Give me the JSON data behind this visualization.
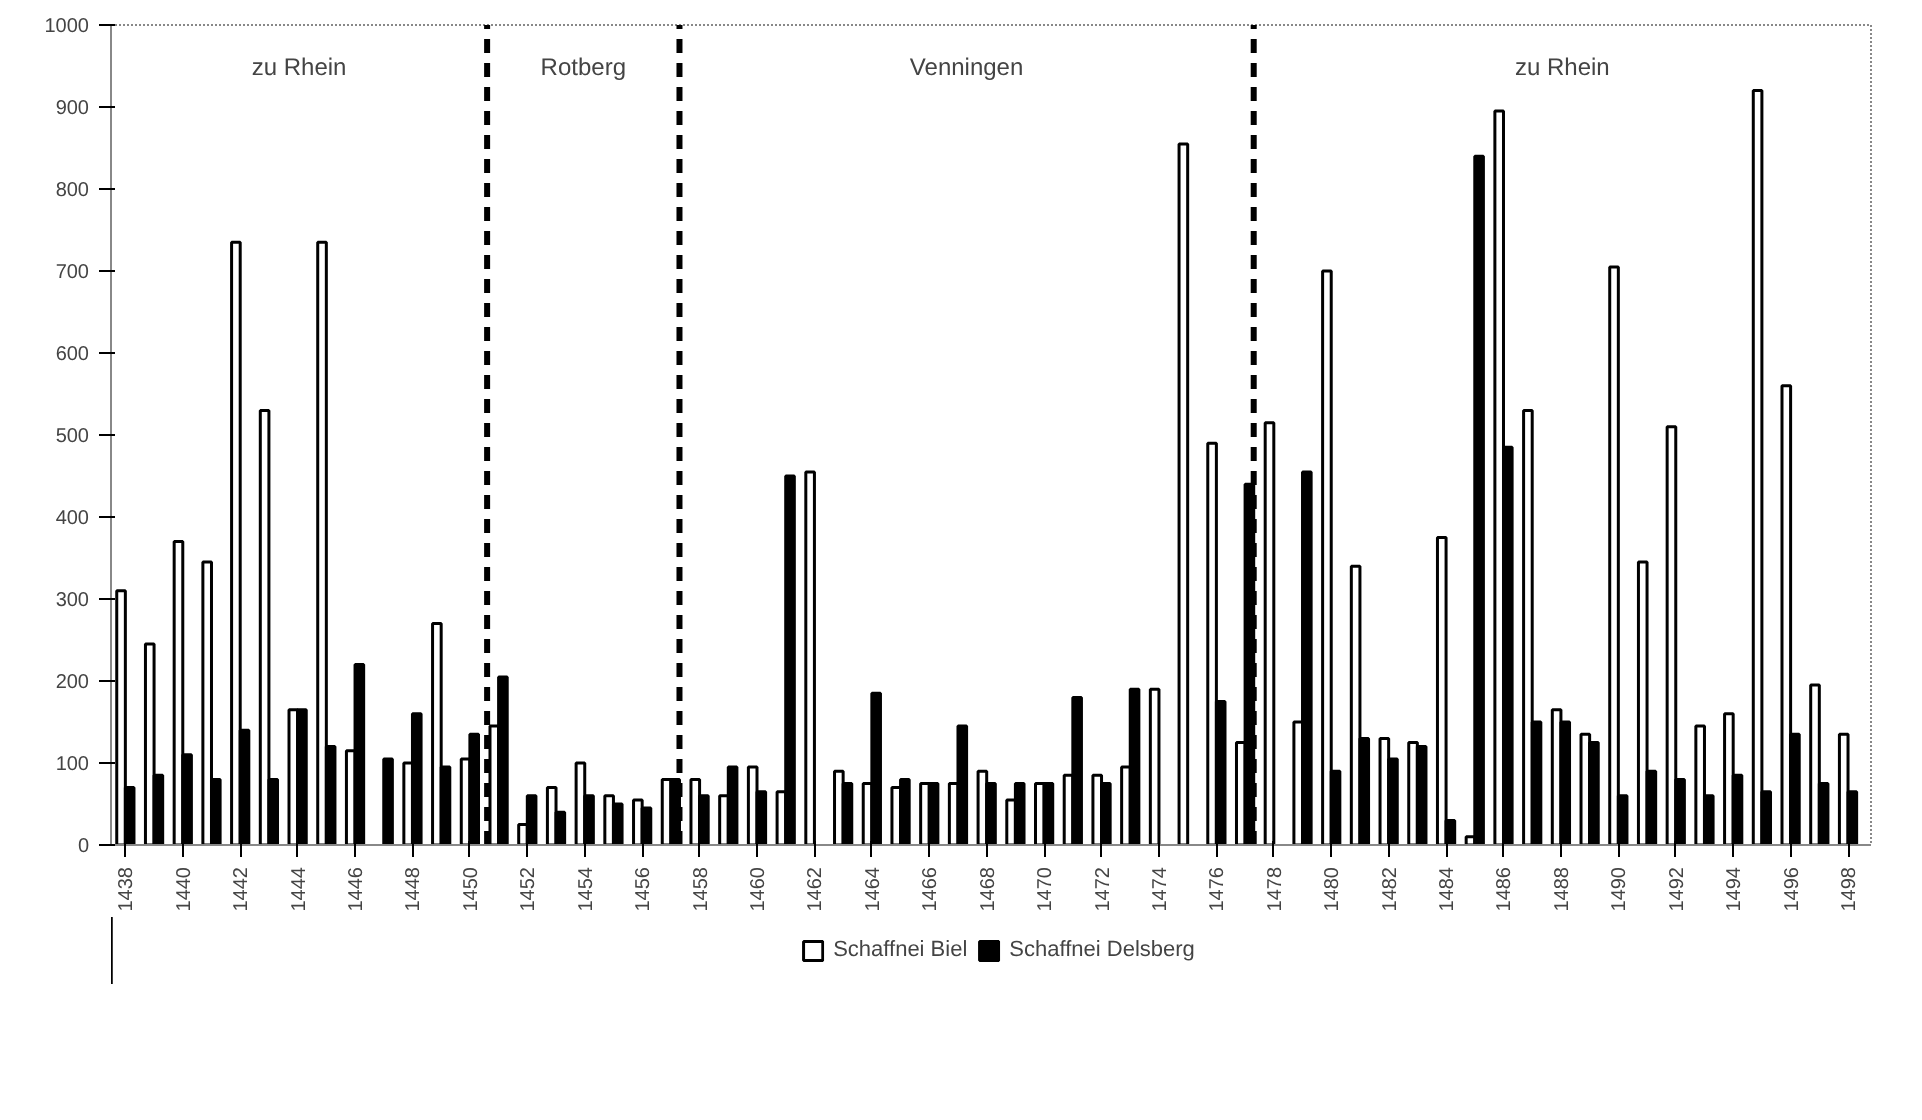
{
  "chart_data": {
    "type": "bar",
    "x": [
      1438,
      1439,
      1440,
      1441,
      1442,
      1443,
      1444,
      1445,
      1446,
      1447,
      1448,
      1449,
      1450,
      1451,
      1452,
      1453,
      1454,
      1455,
      1456,
      1457,
      1458,
      1459,
      1460,
      1461,
      1462,
      1463,
      1464,
      1465,
      1466,
      1467,
      1468,
      1469,
      1470,
      1471,
      1472,
      1473,
      1474,
      1475,
      1476,
      1477,
      1478,
      1479,
      1480,
      1481,
      1482,
      1483,
      1484,
      1485,
      1486,
      1487,
      1488,
      1489,
      1490,
      1491,
      1492,
      1493,
      1494,
      1495,
      1496,
      1497,
      1498
    ],
    "series": [
      {
        "name": "Schaffnei Biel",
        "color": "#ffffff",
        "values": [
          310,
          245,
          370,
          345,
          735,
          530,
          165,
          735,
          115,
          null,
          100,
          270,
          105,
          145,
          25,
          70,
          100,
          60,
          55,
          80,
          80,
          60,
          95,
          65,
          455,
          90,
          75,
          70,
          75,
          75,
          90,
          55,
          75,
          85,
          85,
          95,
          190,
          855,
          490,
          125,
          515,
          150,
          700,
          340,
          130,
          125,
          375,
          10,
          895,
          530,
          165,
          135,
          705,
          345,
          510,
          145,
          160,
          920,
          560,
          195,
          135
        ]
      },
      {
        "name": "Schaffnei Delsberg",
        "color": "#000000",
        "values": [
          70,
          85,
          110,
          80,
          140,
          80,
          165,
          120,
          220,
          105,
          160,
          95,
          135,
          205,
          60,
          40,
          60,
          50,
          45,
          80,
          60,
          95,
          65,
          450,
          null,
          75,
          185,
          80,
          75,
          145,
          75,
          75,
          75,
          180,
          75,
          190,
          null,
          null,
          175,
          440,
          null,
          455,
          90,
          130,
          105,
          120,
          30,
          840,
          485,
          150,
          150,
          125,
          60,
          90,
          80,
          60,
          85,
          65,
          135,
          75,
          65
        ]
      }
    ],
    "xlim": [
      1437.5,
      1498.8
    ],
    "xticks": [
      1438,
      1440,
      1442,
      1444,
      1446,
      1448,
      1450,
      1452,
      1454,
      1456,
      1458,
      1460,
      1462,
      1464,
      1466,
      1468,
      1470,
      1472,
      1474,
      1476,
      1478,
      1480,
      1482,
      1484,
      1486,
      1488,
      1490,
      1492,
      1494,
      1496,
      1498
    ],
    "ylim": [
      0,
      1000
    ],
    "yticks": [
      0,
      100,
      200,
      300,
      400,
      500,
      600,
      700,
      800,
      900,
      1000
    ],
    "ref_lines": [
      {
        "axis": "x",
        "value": 1450.6,
        "line_style": "dashed",
        "color": "#000000"
      },
      {
        "axis": "x",
        "value": 1457.3,
        "line_style": "dashed",
        "color": "#000000"
      },
      {
        "axis": "x",
        "value": 1477.3,
        "line_style": "dashed",
        "color": "#000000"
      }
    ],
    "annotations": [
      "zu Rhein",
      "Rotberg",
      "Venningen",
      "zu Rhein"
    ],
    "grid": false,
    "legend": "bottom"
  }
}
